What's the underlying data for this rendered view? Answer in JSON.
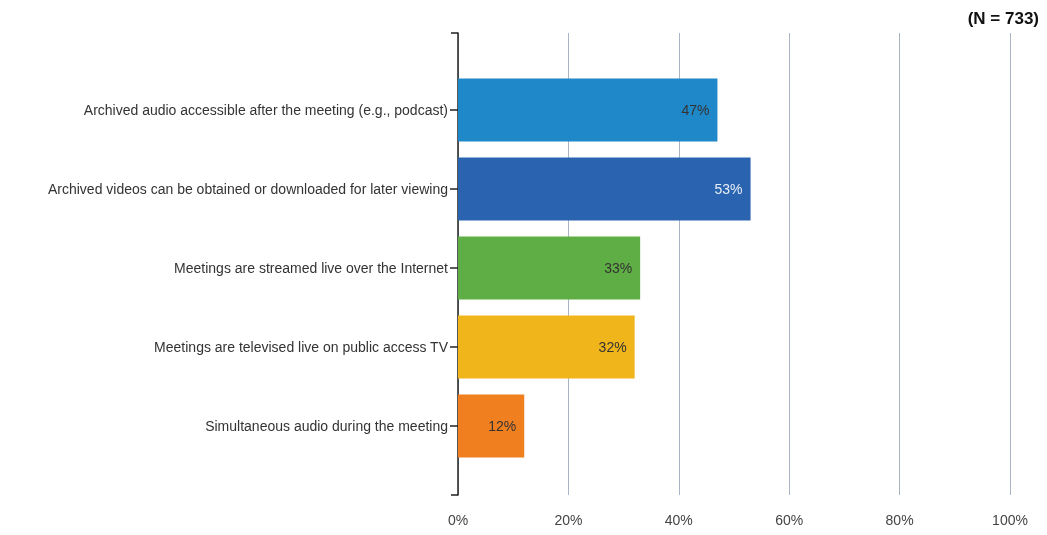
{
  "chart_data": {
    "type": "bar",
    "orientation": "horizontal",
    "categories": [
      "Archived audio accessible after the meeting (e.g., podcast)",
      "Archived videos can be obtained or downloaded for later viewing",
      "Meetings are streamed live over the Internet",
      "Meetings are televised live on public access TV",
      "Simultaneous audio during the meeting"
    ],
    "values": [
      47,
      53,
      33,
      32,
      12
    ],
    "colors": [
      "#1f88c8",
      "#2a64b0",
      "#5fad45",
      "#f0b51a",
      "#f07f20"
    ],
    "value_labels": [
      "47%",
      "53%",
      "33%",
      "32%",
      "12%"
    ],
    "xlim": [
      0,
      100
    ],
    "xticks": [
      {
        "value": 0,
        "label": "0%"
      },
      {
        "value": 20,
        "label": "20%"
      },
      {
        "value": 40,
        "label": "40%"
      },
      {
        "value": 60,
        "label": "60%"
      },
      {
        "value": 80,
        "label": "80%"
      },
      {
        "value": 100,
        "label": "100%"
      }
    ],
    "grid": "x",
    "annotations": [
      "(N = 733)"
    ]
  }
}
